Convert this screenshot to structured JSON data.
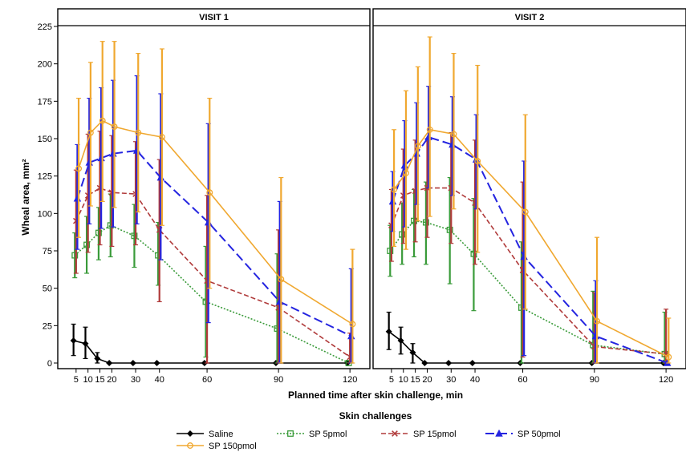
{
  "chart_data": {
    "type": "line",
    "xlabel": "Planned time after skin challenge, min",
    "ylabel": "Wheal area, mm²",
    "ylim": [
      0,
      225
    ],
    "yticks": [
      0,
      25,
      50,
      75,
      100,
      125,
      150,
      175,
      200,
      225
    ],
    "xticks": [
      5,
      10,
      15,
      20,
      30,
      40,
      60,
      90,
      120
    ],
    "xlim": [
      0,
      125
    ],
    "grid": false,
    "legend": {
      "title": "Skin challenges",
      "placement": "bottom"
    },
    "panels": [
      {
        "title": "VISIT 1",
        "series": [
          {
            "name": "Saline",
            "color": "#000000",
            "dash": "solid",
            "marker": "diamond",
            "x": [
              5,
              10,
              15,
              20,
              30,
              40,
              60,
              90,
              120
            ],
            "y": [
              15,
              13,
              3,
              0,
              0,
              0,
              0,
              0,
              0
            ],
            "lo": [
              5,
              3,
              0,
              0,
              0,
              0,
              0,
              0,
              0
            ],
            "hi": [
              26,
              24,
              7,
              0,
              0,
              0,
              0,
              0,
              0
            ]
          },
          {
            "name": "SP 5pmol",
            "color": "#3a9b3a",
            "dash": "dotted",
            "marker": "square",
            "x": [
              5,
              10,
              15,
              20,
              30,
              40,
              60,
              90,
              120
            ],
            "y": [
              72,
              79,
              87,
              92,
              85,
              72,
              41,
              23,
              0
            ],
            "lo": [
              57,
              60,
              69,
              71,
              64,
              52,
              4,
              0,
              0
            ],
            "hi": [
              87,
              98,
              104,
              113,
              106,
              94,
              78,
              73,
              0
            ]
          },
          {
            "name": "SP 15pmol",
            "color": "#b03a3a",
            "dash": "dashed",
            "marker": "x",
            "x": [
              5,
              10,
              15,
              20,
              30,
              40,
              60,
              90,
              120
            ],
            "y": [
              95,
              112,
              117,
              114,
              113,
              89,
              55,
              37,
              4
            ],
            "lo": [
              60,
              74,
              79,
              78,
              79,
              41,
              0,
              0,
              0
            ],
            "hi": [
              129,
              153,
              155,
              152,
              148,
              136,
              112,
              89,
              20
            ]
          },
          {
            "name": "SP 50pmol",
            "color": "#2424e0",
            "dash": "longdash",
            "marker": "triangle",
            "x": [
              5,
              10,
              15,
              20,
              30,
              40,
              60,
              90,
              120
            ],
            "y": [
              110,
              134,
              137,
              140,
              142,
              124,
              94,
              41,
              18
            ],
            "lo": [
              76,
              93,
              90,
              91,
              93,
              69,
              27,
              0,
              0
            ],
            "hi": [
              146,
              177,
              184,
              189,
              192,
              180,
              160,
              108,
              63
            ]
          },
          {
            "name": "SP 150pmol",
            "color": "#f0a830",
            "dash": "solid",
            "marker": "circle",
            "x": [
              5,
              10,
              15,
              20,
              30,
              40,
              60,
              90,
              120
            ],
            "y": [
              130,
              154,
              162,
              158,
              154,
              151,
              114,
              56,
              26
            ],
            "lo": [
              84,
              105,
              108,
              104,
              101,
              92,
              50,
              0,
              0
            ],
            "hi": [
              177,
              201,
              215,
              215,
              207,
              210,
              177,
              124,
              76
            ]
          }
        ]
      },
      {
        "title": "VISIT 2",
        "series": [
          {
            "name": "Saline",
            "color": "#000000",
            "dash": "solid",
            "marker": "diamond",
            "x": [
              5,
              10,
              15,
              20,
              30,
              40,
              60,
              90,
              120
            ],
            "y": [
              21,
              15,
              7,
              0,
              0,
              0,
              0,
              0,
              0
            ],
            "lo": [
              9,
              6,
              0,
              0,
              0,
              0,
              0,
              0,
              0
            ],
            "hi": [
              34,
              24,
              13,
              0,
              0,
              0,
              0,
              0,
              0
            ]
          },
          {
            "name": "SP 5pmol",
            "color": "#3a9b3a",
            "dash": "dotted",
            "marker": "square",
            "x": [
              5,
              10,
              15,
              20,
              30,
              40,
              60,
              90,
              120
            ],
            "y": [
              75,
              86,
              95,
              94,
              89,
              73,
              37,
              12,
              6
            ],
            "lo": [
              58,
              66,
              71,
              66,
              53,
              35,
              0,
              0,
              0
            ],
            "hi": [
              92,
              107,
              116,
              121,
              124,
              110,
              81,
              48,
              34
            ]
          },
          {
            "name": "SP 15pmol",
            "color": "#b03a3a",
            "dash": "dashed",
            "marker": "x",
            "x": [
              5,
              10,
              15,
              20,
              30,
              40,
              60,
              90,
              120
            ],
            "y": [
              92,
              112,
              115,
              117,
              117,
              107,
              62,
              11,
              6
            ],
            "lo": [
              68,
              80,
              81,
              84,
              80,
              66,
              4,
              0,
              0
            ],
            "hi": [
              116,
              143,
              149,
              150,
              154,
              149,
              121,
              47,
              36
            ]
          },
          {
            "name": "SP 50pmol",
            "color": "#2424e0",
            "dash": "longdash",
            "marker": "triangle",
            "x": [
              5,
              10,
              15,
              20,
              30,
              40,
              60,
              90,
              120
            ],
            "y": [
              108,
              132,
              140,
              151,
              146,
              136,
              71,
              18,
              0
            ],
            "lo": [
              88,
              91,
              106,
              117,
              112,
              103,
              5,
              0,
              0
            ],
            "hi": [
              128,
              162,
              174,
              185,
              178,
              166,
              135,
              55,
              0
            ]
          },
          {
            "name": "SP 150pmol",
            "color": "#f0a830",
            "dash": "solid",
            "marker": "circle",
            "x": [
              5,
              10,
              15,
              20,
              30,
              40,
              60,
              90,
              120
            ],
            "y": [
              116,
              127,
              145,
              156,
              153,
              135,
              101,
              28,
              4
            ],
            "lo": [
              78,
              76,
              95,
              98,
              103,
              74,
              36,
              0,
              0
            ],
            "hi": [
              156,
              182,
              198,
              218,
              207,
              199,
              166,
              84,
              30
            ]
          }
        ]
      }
    ]
  }
}
